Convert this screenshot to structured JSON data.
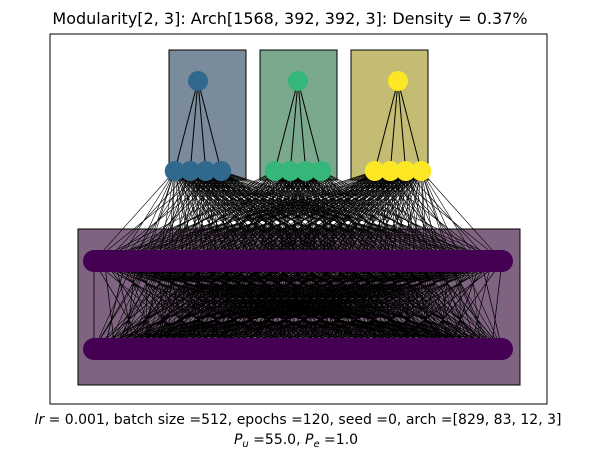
{
  "title": "Modularity[2, 3]: Arch[1568, 392, 392, 3]: Density = 0.37%",
  "caption": {
    "line1_prefix": "lr",
    "line1_rest": " =  0.001, batch size =512, epochs =120, seed =0, arch =[829, 83, 12, 3]",
    "line2_pu_base": "P",
    "line2_pu_sub": "u",
    "line2_pu_value": " =55.0, ",
    "line2_pe_base": "P",
    "line2_pe_sub": "e",
    "line2_pe_value": " =1.0"
  },
  "network": {
    "modules": [
      {
        "name": "module-1",
        "color": "#31688e",
        "box_fill": "#7a8b9b",
        "hidden_count": 4
      },
      {
        "name": "module-2",
        "color": "#35b779",
        "box_fill": "#7aa98d",
        "hidden_count": 4
      },
      {
        "name": "module-3",
        "color": "#fde725",
        "box_fill": "#c3bc72",
        "hidden_count": 4
      }
    ],
    "input_layer": {
      "color": "#440154",
      "box_fill": "#7f6482",
      "rows": 2
    },
    "edge_color": "#000000"
  }
}
